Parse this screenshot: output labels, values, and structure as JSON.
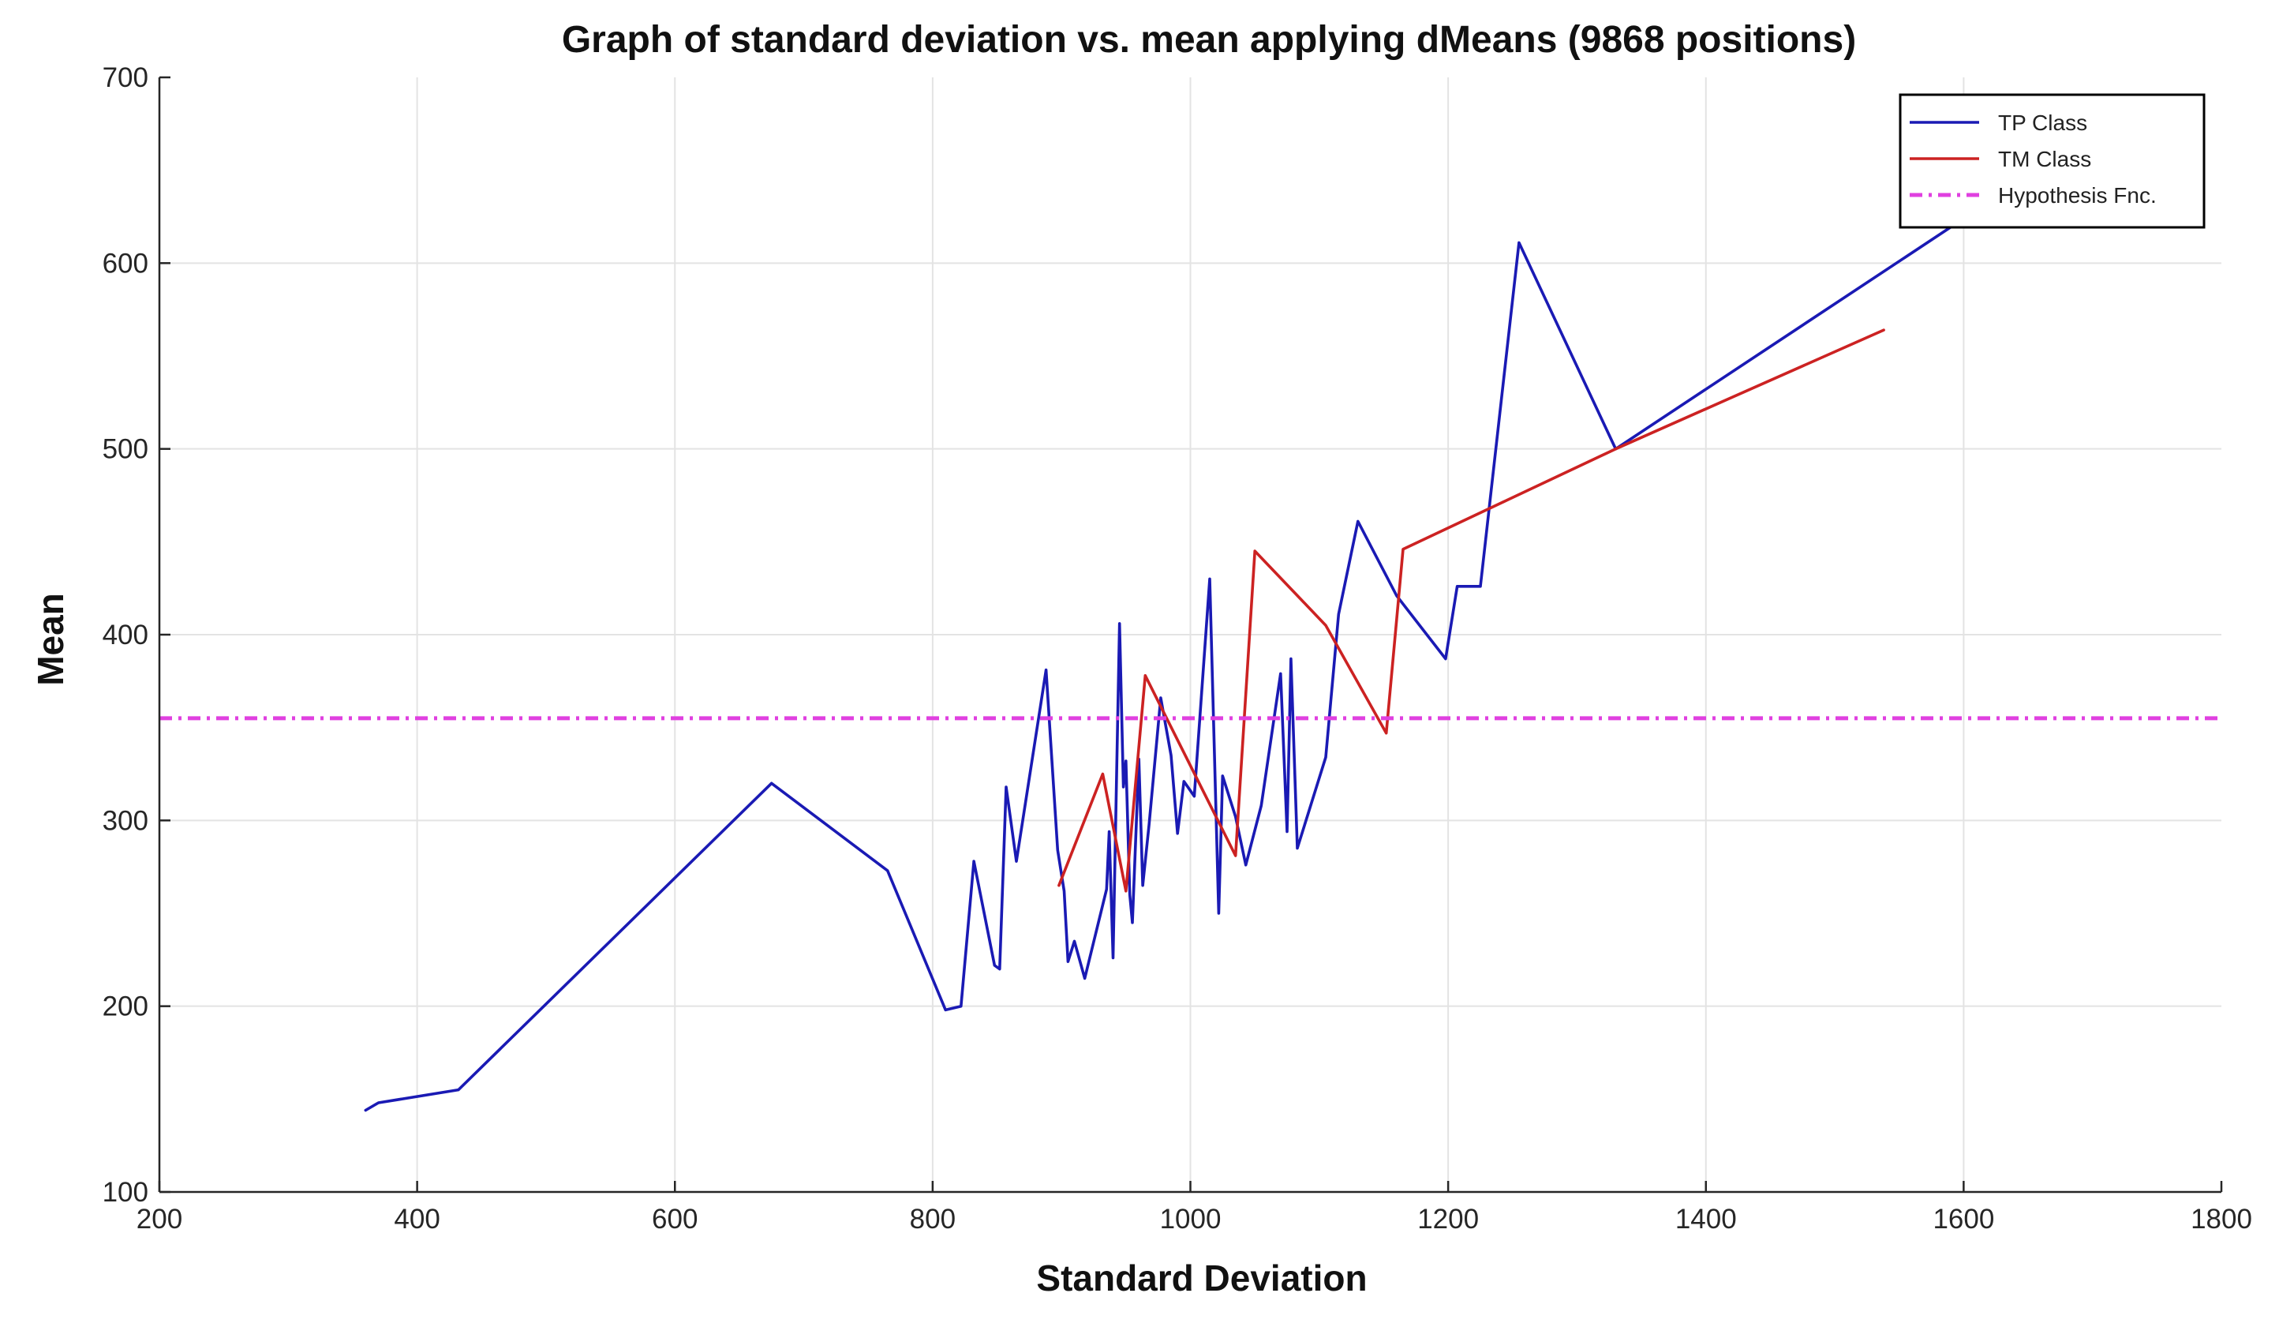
{
  "chart_data": {
    "type": "line",
    "title": "Graph of standard deviation vs. mean applying dMeans (9868 positions)",
    "xlabel": "Standard Deviation",
    "ylabel": "Mean",
    "xlim": [
      200,
      1800
    ],
    "ylim": [
      100,
      700
    ],
    "xticks": [
      200,
      400,
      600,
      800,
      1000,
      1200,
      1400,
      1600,
      1800
    ],
    "yticks": [
      100,
      200,
      300,
      400,
      500,
      600,
      700
    ],
    "grid": true,
    "legend_position": "top-right",
    "series": [
      {
        "name": "TP Class",
        "color": "#1a1ab4",
        "style": "solid",
        "points": [
          [
            360,
            144
          ],
          [
            370,
            148
          ],
          [
            432,
            155
          ],
          [
            675,
            320
          ],
          [
            765,
            273
          ],
          [
            810,
            198
          ],
          [
            822,
            200
          ],
          [
            832,
            278
          ],
          [
            848,
            222
          ],
          [
            852,
            220
          ],
          [
            857,
            318
          ],
          [
            865,
            278
          ],
          [
            888,
            381
          ],
          [
            897,
            284
          ],
          [
            902,
            262
          ],
          [
            905,
            224
          ],
          [
            910,
            235
          ],
          [
            918,
            215
          ],
          [
            935,
            263
          ],
          [
            937,
            294
          ],
          [
            940,
            226
          ],
          [
            945,
            406
          ],
          [
            948,
            318
          ],
          [
            950,
            332
          ],
          [
            953,
            260
          ],
          [
            955,
            245
          ],
          [
            960,
            333
          ],
          [
            963,
            265
          ],
          [
            968,
            298
          ],
          [
            977,
            366
          ],
          [
            985,
            335
          ],
          [
            990,
            293
          ],
          [
            995,
            321
          ],
          [
            1003,
            313
          ],
          [
            1015,
            430
          ],
          [
            1022,
            250
          ],
          [
            1025,
            324
          ],
          [
            1035,
            302
          ],
          [
            1043,
            276
          ],
          [
            1055,
            308
          ],
          [
            1070,
            379
          ],
          [
            1075,
            294
          ],
          [
            1078,
            387
          ],
          [
            1083,
            285
          ],
          [
            1105,
            334
          ],
          [
            1115,
            411
          ],
          [
            1130,
            461
          ],
          [
            1160,
            421
          ],
          [
            1198,
            387
          ],
          [
            1207,
            426
          ],
          [
            1220,
            426
          ],
          [
            1225,
            426
          ],
          [
            1255,
            611
          ],
          [
            1330,
            500
          ],
          [
            1600,
            624
          ]
        ]
      },
      {
        "name": "TM Class",
        "color": "#cc2222",
        "style": "solid",
        "points": [
          [
            898,
            265
          ],
          [
            932,
            325
          ],
          [
            950,
            262
          ],
          [
            965,
            378
          ],
          [
            1035,
            281
          ],
          [
            1050,
            445
          ],
          [
            1105,
            405
          ],
          [
            1152,
            347
          ],
          [
            1165,
            446
          ],
          [
            1330,
            500
          ],
          [
            1538,
            564
          ]
        ]
      },
      {
        "name": "Hypothesis Fnc.",
        "color": "#e040e0",
        "style": "dash-dot",
        "points": [
          [
            200,
            355
          ],
          [
            1800,
            355
          ]
        ]
      }
    ]
  }
}
